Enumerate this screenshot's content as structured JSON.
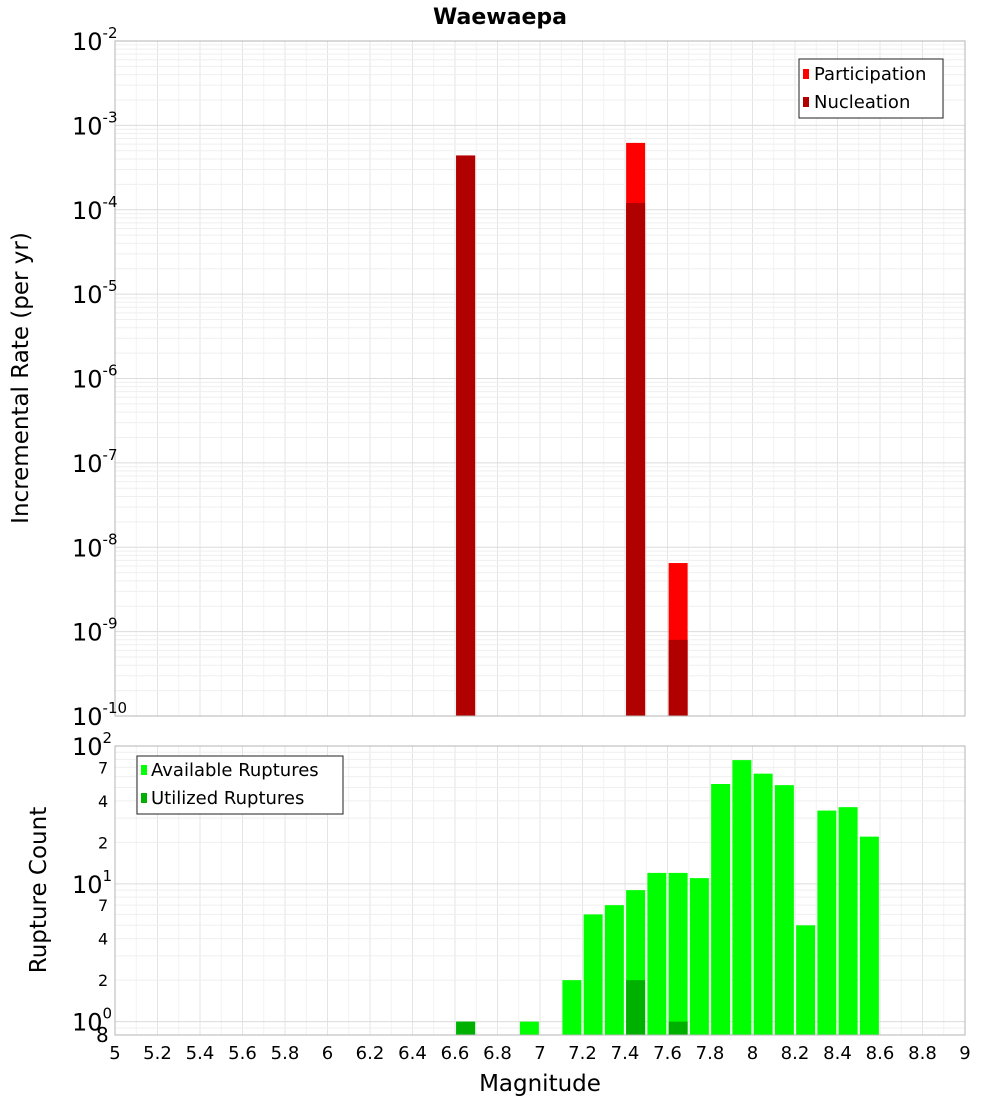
{
  "chart_data": [
    {
      "type": "bar",
      "title": "Waewaepa",
      "xlabel": "Magnitude",
      "ylabel": "Incremental Rate (per yr)",
      "yscale": "log",
      "ylim": [
        1e-10,
        0.01
      ],
      "xlim": [
        5,
        9
      ],
      "grid": true,
      "legend_position": "top-right",
      "y_ticks": [
        {
          "base": "10",
          "exp": "-10"
        },
        {
          "base": "10",
          "exp": "-9"
        },
        {
          "base": "10",
          "exp": "-8"
        },
        {
          "base": "10",
          "exp": "-7"
        },
        {
          "base": "10",
          "exp": "-6"
        },
        {
          "base": "10",
          "exp": "-5"
        },
        {
          "base": "10",
          "exp": "-4"
        },
        {
          "base": "10",
          "exp": "-3"
        },
        {
          "base": "10",
          "exp": "-2"
        }
      ],
      "series": [
        {
          "name": "Participation",
          "color": "#ff0000",
          "points": [
            {
              "x": 6.65,
              "y": 0.00044
            },
            {
              "x": 7.45,
              "y": 0.00062
            },
            {
              "x": 7.65,
              "y": 6.5e-09
            }
          ]
        },
        {
          "name": "Nucleation",
          "color": "#b00000",
          "points": [
            {
              "x": 6.65,
              "y": 0.00044
            },
            {
              "x": 7.45,
              "y": 0.00012
            },
            {
              "x": 7.65,
              "y": 8e-10
            }
          ]
        }
      ]
    },
    {
      "type": "bar",
      "xlabel": "Magnitude",
      "ylabel": "Rupture Count",
      "yscale": "log",
      "ylim": [
        0.8,
        100
      ],
      "xlim": [
        5,
        9
      ],
      "grid": true,
      "legend_position": "top-left",
      "x_ticks": [
        "5",
        "5.2",
        "5.4",
        "5.6",
        "5.8",
        "6",
        "6.2",
        "6.4",
        "6.6",
        "6.8",
        "7",
        "7.2",
        "7.4",
        "7.6",
        "7.8",
        "8",
        "8.2",
        "8.4",
        "8.6",
        "8.8",
        "9"
      ],
      "y_major_ticks": [
        {
          "value": 1,
          "base": "10",
          "exp": "0"
        },
        {
          "value": 10,
          "base": "10",
          "exp": "1"
        },
        {
          "value": 100,
          "base": "10",
          "exp": "2"
        }
      ],
      "y_minor_ticks": [
        {
          "value": 0.8,
          "label": "8"
        },
        {
          "value": 2,
          "label": "2"
        },
        {
          "value": 4,
          "label": "4"
        },
        {
          "value": 7,
          "label": "7"
        },
        {
          "value": 20,
          "label": "2"
        },
        {
          "value": 40,
          "label": "4"
        },
        {
          "value": 70,
          "label": "7"
        }
      ],
      "series": [
        {
          "name": "Available Ruptures",
          "color": "#00ff00",
          "points": [
            {
              "x": 6.65,
              "y": 1
            },
            {
              "x": 6.95,
              "y": 1
            },
            {
              "x": 7.15,
              "y": 2
            },
            {
              "x": 7.25,
              "y": 6
            },
            {
              "x": 7.35,
              "y": 7
            },
            {
              "x": 7.45,
              "y": 9
            },
            {
              "x": 7.55,
              "y": 12
            },
            {
              "x": 7.65,
              "y": 12
            },
            {
              "x": 7.75,
              "y": 11
            },
            {
              "x": 7.85,
              "y": 53
            },
            {
              "x": 7.95,
              "y": 79
            },
            {
              "x": 8.05,
              "y": 63
            },
            {
              "x": 8.15,
              "y": 52
            },
            {
              "x": 8.25,
              "y": 5
            },
            {
              "x": 8.35,
              "y": 34
            },
            {
              "x": 8.45,
              "y": 36
            },
            {
              "x": 8.55,
              "y": 22
            }
          ]
        },
        {
          "name": "Utilized Ruptures",
          "color": "#00b000",
          "points": [
            {
              "x": 6.65,
              "y": 1
            },
            {
              "x": 7.45,
              "y": 2
            },
            {
              "x": 7.65,
              "y": 1
            }
          ]
        }
      ]
    }
  ]
}
